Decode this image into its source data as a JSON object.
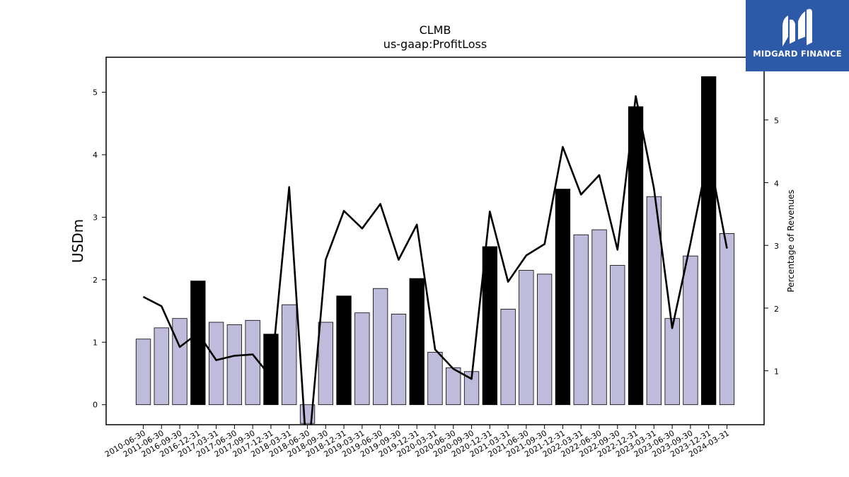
{
  "chart_data": {
    "type": "bar",
    "title": "CLMB",
    "subtitle": "us-gaap:ProfitLoss",
    "ylabel": "USDm",
    "ylabel_right": "Percentage of Revenues",
    "ylim": [
      -0.32,
      5.56
    ],
    "ylim_right": [
      0.14,
      6.0
    ],
    "yticks": [
      0,
      1,
      2,
      3,
      4,
      5
    ],
    "yticks_right": [
      1,
      2,
      3,
      4,
      5
    ],
    "grid": false,
    "colors": {
      "regular": "#bfbbdb",
      "highlight": "#000000",
      "line": "#000000"
    },
    "categories": [
      "2010-06-30",
      "2011-06-30",
      "2016-09-30",
      "2016-12-31",
      "2017-03-31",
      "2017-06-30",
      "2017-09-30",
      "2017-12-31",
      "2018-03-31",
      "2018-06-30",
      "2018-09-30",
      "2018-12-31",
      "2019-03-31",
      "2019-06-30",
      "2019-09-30",
      "2019-12-31",
      "2020-03-31",
      "2020-06-30",
      "2020-09-30",
      "2020-12-31",
      "2021-03-31",
      "2021-06-30",
      "2021-09-30",
      "2021-12-31",
      "2022-03-31",
      "2022-06-30",
      "2022-09-30",
      "2022-12-31",
      "2023-03-31",
      "2023-06-30",
      "2023-09-30",
      "2023-12-31",
      "2024-03-31"
    ],
    "series": [
      {
        "type": "bar",
        "values": [
          1.05,
          1.23,
          1.38,
          1.98,
          1.32,
          1.28,
          1.35,
          1.13,
          1.6,
          -0.3,
          1.32,
          1.74,
          1.47,
          1.86,
          1.45,
          2.02,
          0.84,
          0.59,
          0.53,
          2.53,
          1.53,
          2.15,
          2.09,
          3.45,
          2.72,
          2.8,
          2.23,
          4.77,
          3.33,
          1.38,
          2.38,
          5.25,
          2.74
        ],
        "highlight": [
          false,
          false,
          false,
          true,
          false,
          false,
          false,
          true,
          false,
          false,
          false,
          true,
          false,
          false,
          false,
          true,
          false,
          false,
          false,
          true,
          false,
          false,
          false,
          true,
          false,
          false,
          false,
          true,
          false,
          false,
          false,
          true,
          false
        ]
      },
      {
        "type": "line",
        "axis": "right",
        "values": [
          2.18,
          2.03,
          1.38,
          1.6,
          1.17,
          1.24,
          1.26,
          0.9,
          3.93,
          -0.5,
          2.77,
          3.55,
          3.27,
          3.66,
          2.77,
          3.33,
          1.34,
          1.03,
          0.87,
          3.54,
          2.42,
          2.84,
          3.02,
          4.57,
          3.81,
          4.12,
          2.93,
          5.38,
          3.91,
          1.68,
          3.03,
          4.47,
          2.95
        ]
      }
    ]
  },
  "logo": {
    "text": "MIDGARD FINANCE"
  }
}
